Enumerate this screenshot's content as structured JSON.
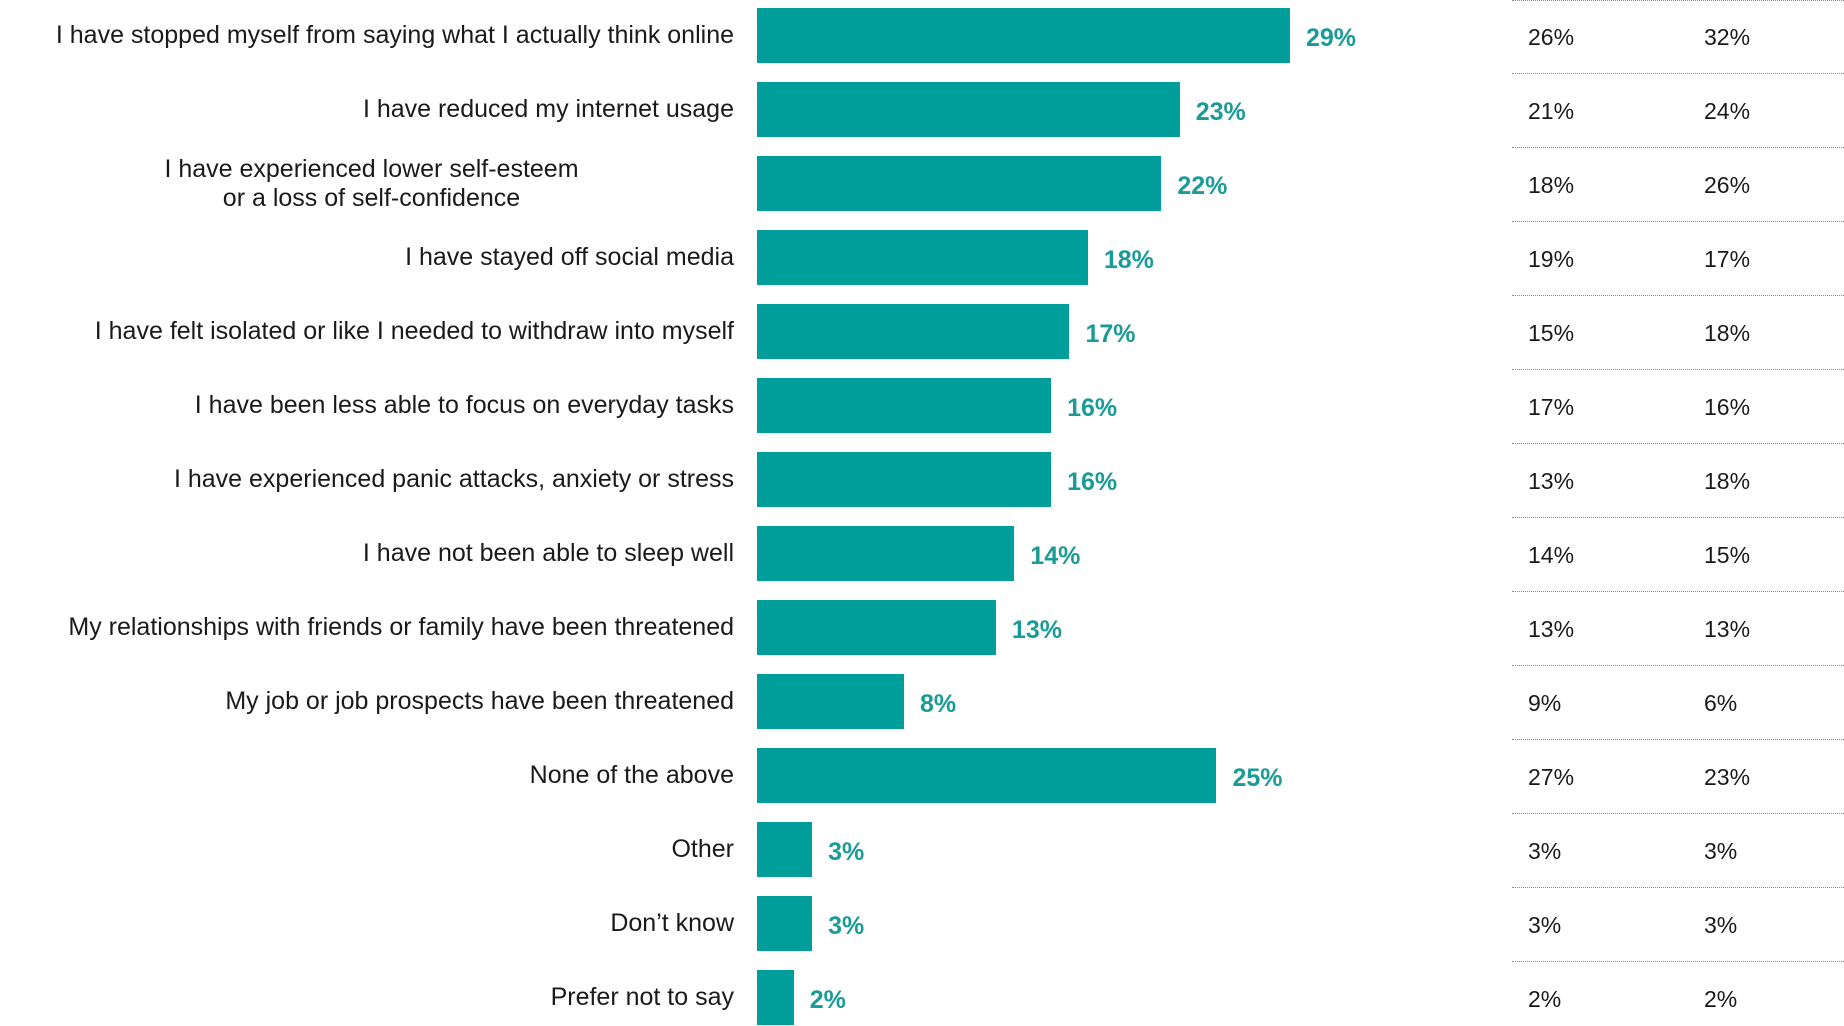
{
  "chart_data": {
    "type": "bar",
    "orientation": "horizontal",
    "title": "",
    "xlabel": "",
    "ylabel": "",
    "xlim": [
      0,
      100
    ],
    "grid": false,
    "categories": [
      "I have stopped myself from saying what I actually think online",
      "I have reduced my internet usage",
      "I have experienced lower self-esteem\nor a loss of self-confidence",
      "I have stayed off social media",
      "I have felt isolated or like I needed to withdraw into myself",
      "I have been less able to focus on everyday tasks",
      "I have experienced panic attacks, anxiety or stress",
      "I have not been able to sleep well",
      "My relationships with friends or family have been threatened",
      "My job or job prospects have been threatened",
      "None of the above",
      "Other",
      "Don’t know",
      "Prefer not to say"
    ],
    "values": [
      29,
      23,
      22,
      18,
      17,
      16,
      16,
      14,
      13,
      8,
      25,
      3,
      3,
      2
    ],
    "value_labels": [
      "29%",
      "23%",
      "22%",
      "18%",
      "17%",
      "16%",
      "16%",
      "14%",
      "13%",
      "8%",
      "25%",
      "3%",
      "3%",
      "2%"
    ],
    "bar_color": "#009e9a",
    "label_color": "#1a9b97",
    "table_columns": [
      {
        "values": [
          "26%",
          "21%",
          "18%",
          "19%",
          "15%",
          "17%",
          "13%",
          "14%",
          "13%",
          "9%",
          "27%",
          "3%",
          "3%",
          "2%"
        ]
      },
      {
        "values": [
          "32%",
          "24%",
          "26%",
          "17%",
          "18%",
          "16%",
          "18%",
          "15%",
          "13%",
          "6%",
          "23%",
          "3%",
          "3%",
          "2%"
        ]
      }
    ]
  }
}
